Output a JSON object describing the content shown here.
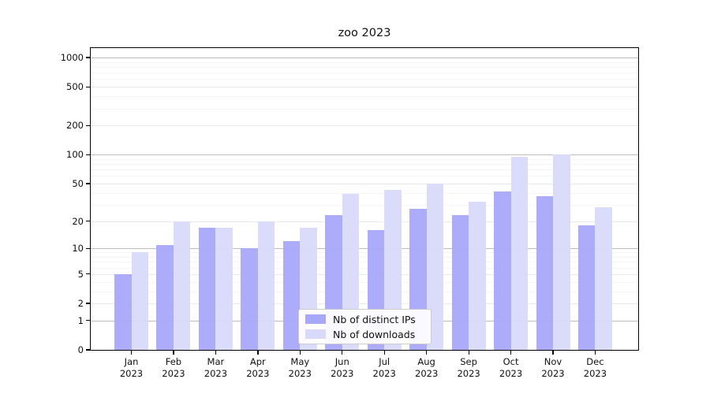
{
  "title": "zoo 2023",
  "chart_data": {
    "type": "bar",
    "title": "zoo 2023",
    "categories": [
      "Jan",
      "Feb",
      "Mar",
      "Apr",
      "May",
      "Jun",
      "Jul",
      "Aug",
      "Sep",
      "Oct",
      "Nov",
      "Dec"
    ],
    "category_year": "2023",
    "series": [
      {
        "name": "Nb of distinct IPs",
        "color": "#a8a8fa",
        "values": [
          5,
          11,
          17,
          10,
          12,
          23,
          16,
          27,
          23,
          41,
          37,
          18
        ]
      },
      {
        "name": "Nb of downloads",
        "color": "#d9d9fa",
        "values": [
          9,
          20,
          17,
          20,
          17,
          39,
          43,
          50,
          32,
          94,
          100,
          28
        ]
      }
    ],
    "yscale": "log1p",
    "yticks": [
      0,
      1,
      2,
      5,
      10,
      20,
      50,
      100,
      200,
      500,
      1000
    ],
    "ylim": [
      0,
      1260
    ],
    "grid": "on",
    "legend_position": "lower center-left inside plot",
    "colors": {
      "axis": "#000000",
      "grid_major": "#bdbdbd",
      "grid_minor": "#f4f4f7",
      "text": "#111111"
    }
  }
}
